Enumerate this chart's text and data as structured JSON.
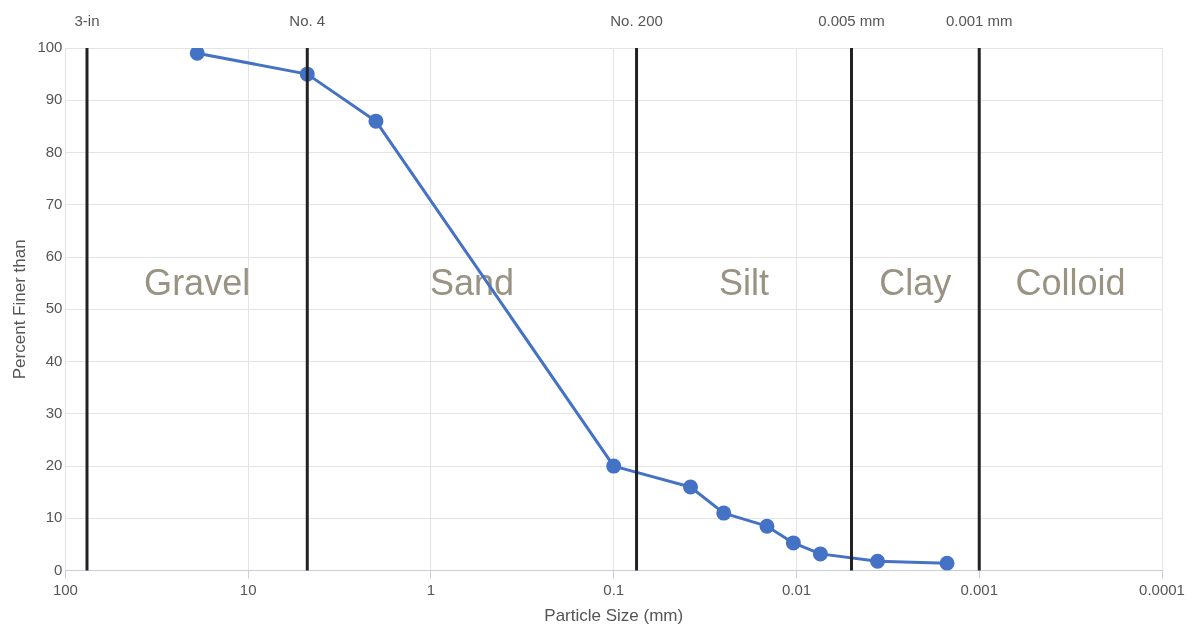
{
  "chart_data": {
    "type": "line",
    "xlabel": "Particle Size (mm)",
    "ylabel": "Percent Finer than",
    "x": [
      19,
      4.75,
      2,
      0.1,
      0.038,
      0.025,
      0.0145,
      0.0104,
      0.0074,
      0.0036,
      0.0015
    ],
    "series": [
      {
        "color": "#4472c4",
        "values": [
          99,
          95,
          86,
          20,
          16,
          11,
          8.5,
          5.3,
          3.2,
          1.8,
          1.4
        ]
      }
    ],
    "log": "x",
    "xlim": [
      100,
      0.0001
    ],
    "xticks": [
      100,
      10,
      1,
      0.1,
      0.01,
      0.001,
      0.0001
    ],
    "ylim": [
      0,
      100
    ],
    "yticks": [
      0,
      10,
      20,
      30,
      40,
      50,
      60,
      70,
      80,
      90,
      100
    ],
    "grid": true,
    "legend": false,
    "marker": "circle",
    "line_style": "solid",
    "ref_lines": [
      {
        "axis": "x",
        "value": 76.2,
        "label": "3-in",
        "color": "#222222"
      },
      {
        "axis": "x",
        "value": 4.75,
        "label": "No. 4",
        "color": "#222222"
      },
      {
        "axis": "x",
        "value": 0.075,
        "label": "No. 200",
        "color": "#222222"
      },
      {
        "axis": "x",
        "value": 0.005,
        "label": "0.005 mm",
        "color": "#222222"
      },
      {
        "axis": "x",
        "value": 0.001,
        "label": "0.001 mm",
        "color": "#222222"
      }
    ],
    "annotations": [
      "Gravel",
      "Sand",
      "Silt",
      "Clay",
      "Colloid"
    ]
  }
}
